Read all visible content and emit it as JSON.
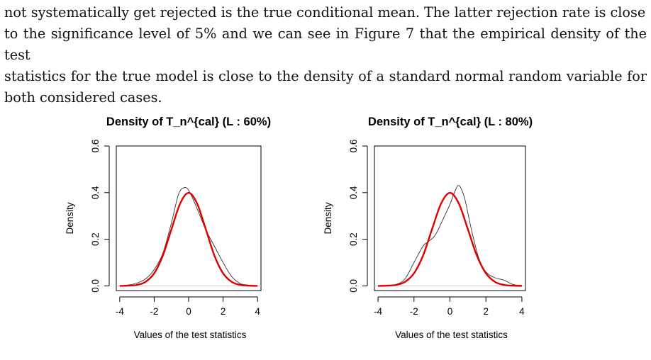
{
  "paragraph": {
    "lines": [
      "not systematically get rejected is the true conditional mean. The latter rejection rate is close",
      "to the significance level of 5% and we can see in Figure 7 that the empirical density of the test",
      "statistics for the true model is close to the density of a standard normal random variable for",
      "both considered cases."
    ]
  },
  "colors": {
    "normal_curve": "#e00000",
    "empirical_curve": "#333333",
    "baseline": "#cccccc"
  },
  "chart_data": [
    {
      "type": "line",
      "title": "Density of T_n^{cal} (L : 60%)",
      "xlabel": "Values of the test statistics",
      "ylabel": "Density",
      "xlim": [
        -4.2,
        4.2
      ],
      "ylim": [
        -0.02,
        0.6
      ],
      "x_ticks": [
        "-4",
        "-2",
        "0",
        "2",
        "4"
      ],
      "y_ticks": [
        "0.0",
        "0.2",
        "0.4",
        "0.6"
      ],
      "series": [
        {
          "kind": "normal",
          "x": [
            -4.0,
            -3.5,
            -3.0,
            -2.5,
            -2.0,
            -1.5,
            -1.0,
            -0.5,
            0.0,
            0.5,
            1.0,
            1.5,
            2.0,
            2.5,
            3.0,
            3.5,
            4.0
          ],
          "y": [
            0.0,
            0.0009,
            0.0044,
            0.0175,
            0.054,
            0.1295,
            0.242,
            0.352,
            0.399,
            0.352,
            0.242,
            0.1295,
            0.054,
            0.0175,
            0.0044,
            0.0009,
            0.0
          ]
        },
        {
          "kind": "empirical",
          "x": [
            -4.0,
            -3.5,
            -3.0,
            -2.5,
            -2.0,
            -1.5,
            -1.0,
            -0.6,
            -0.3,
            0.0,
            0.5,
            1.0,
            1.5,
            2.0,
            2.5,
            3.0,
            3.5,
            4.0
          ],
          "y": [
            0.001,
            0.004,
            0.012,
            0.03,
            0.07,
            0.14,
            0.27,
            0.39,
            0.42,
            0.41,
            0.33,
            0.24,
            0.17,
            0.1,
            0.04,
            0.01,
            0.003,
            0.001
          ]
        }
      ]
    },
    {
      "type": "line",
      "title": "Density of T_n^{cal} (L : 80%)",
      "xlabel": "Values of the test statistics",
      "ylabel": "Density",
      "xlim": [
        -4.2,
        4.2
      ],
      "ylim": [
        -0.02,
        0.6
      ],
      "x_ticks": [
        "-4",
        "-2",
        "0",
        "2",
        "4"
      ],
      "y_ticks": [
        "0.0",
        "0.2",
        "0.4",
        "0.6"
      ],
      "series": [
        {
          "kind": "normal",
          "x": [
            -4.0,
            -3.5,
            -3.0,
            -2.5,
            -2.0,
            -1.5,
            -1.0,
            -0.5,
            0.0,
            0.5,
            1.0,
            1.5,
            2.0,
            2.5,
            3.0,
            3.5,
            4.0
          ],
          "y": [
            0.0,
            0.0009,
            0.0044,
            0.0175,
            0.054,
            0.1295,
            0.242,
            0.352,
            0.399,
            0.352,
            0.242,
            0.1295,
            0.054,
            0.0175,
            0.0044,
            0.0009,
            0.0
          ]
        },
        {
          "kind": "empirical",
          "x": [
            -4.0,
            -3.5,
            -3.0,
            -2.5,
            -2.0,
            -1.5,
            -1.2,
            -0.8,
            -0.3,
            0.0,
            0.3,
            0.5,
            0.8,
            1.2,
            1.6,
            2.0,
            2.5,
            3.0,
            3.5,
            4.0
          ],
          "y": [
            0.001,
            0.002,
            0.006,
            0.03,
            0.1,
            0.17,
            0.19,
            0.22,
            0.3,
            0.35,
            0.41,
            0.43,
            0.38,
            0.24,
            0.12,
            0.06,
            0.035,
            0.025,
            0.006,
            0.002
          ]
        }
      ]
    }
  ]
}
